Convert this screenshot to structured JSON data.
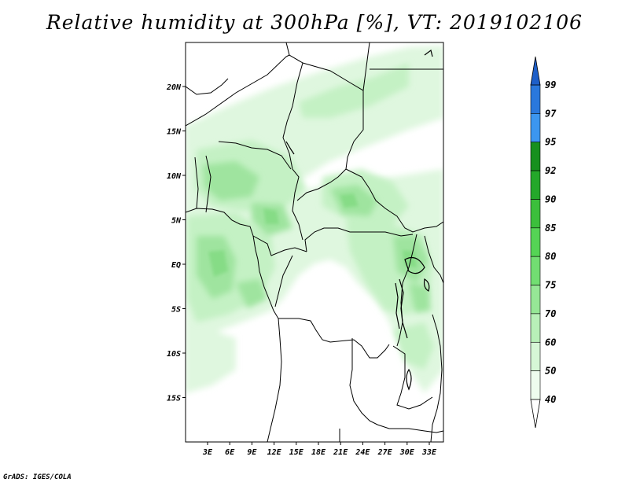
{
  "title": "Relative humidity at 300hPa [%], VT: 2019102106",
  "credit": "GrADS: IGES/COLA",
  "map": {
    "lat_labels": [
      "20N",
      "15N",
      "10N",
      "5N",
      "EQ",
      "5S",
      "10S",
      "15S"
    ],
    "lon_labels": [
      "3E",
      "6E",
      "9E",
      "12E",
      "15E",
      "18E",
      "21E",
      "24E",
      "27E",
      "30E",
      "33E"
    ]
  },
  "colorbar": {
    "labels": [
      "99",
      "97",
      "95",
      "92",
      "90",
      "85",
      "80",
      "75",
      "70",
      "60",
      "50",
      "40"
    ],
    "colors": [
      "#1e5fc8",
      "#2a78dc",
      "#3c96f0",
      "#17901e",
      "#24a82a",
      "#3cbf3c",
      "#55d455",
      "#72de72",
      "#96e796",
      "#b8f0b8",
      "#d6f7d6",
      "#eefcee"
    ],
    "top_arrow_color": "#1e5fc8",
    "bottom_arrow_color": "#ffffff"
  }
}
